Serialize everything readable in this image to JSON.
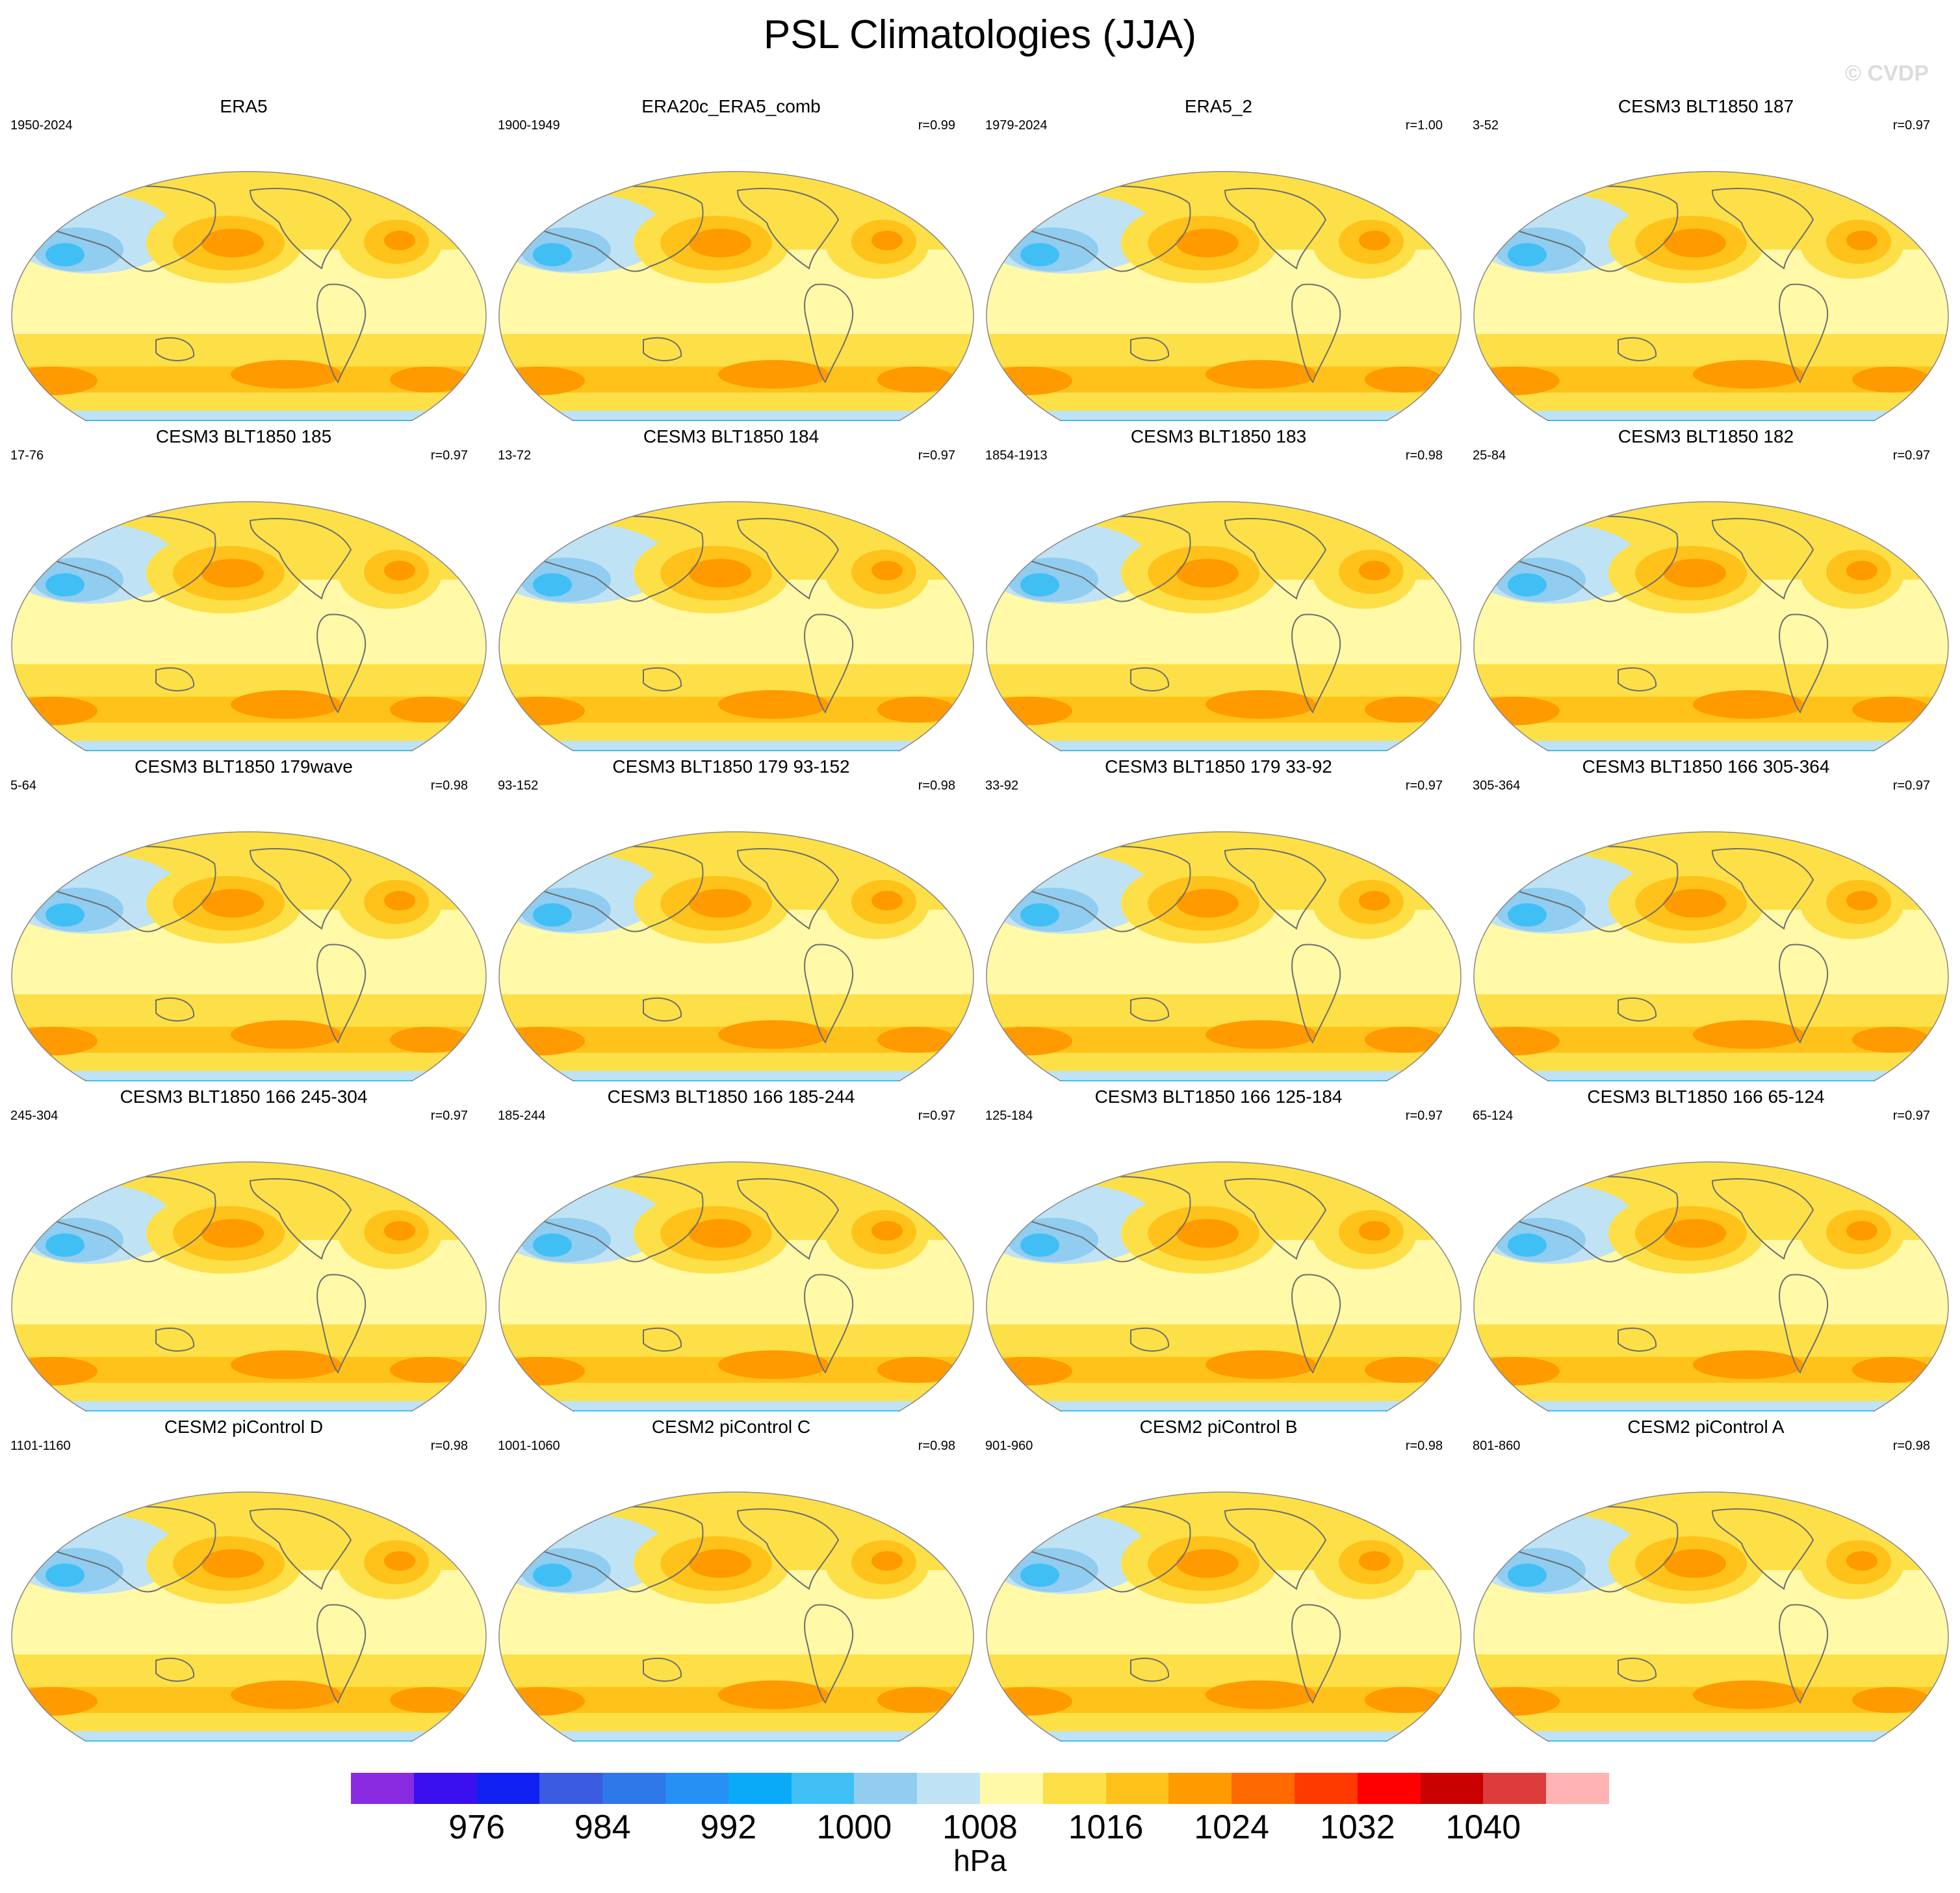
{
  "title": "PSL Climatologies (JJA)",
  "watermark": "© CVDP",
  "unit": "hPa",
  "colorbar": {
    "colors": [
      "#8a2be2",
      "#3a10f0",
      "#1020f0",
      "#3a5ae0",
      "#2f78ea",
      "#2690f5",
      "#0aaaf8",
      "#40bff5",
      "#90cdf0",
      "#bfe3f5",
      "#fff9a8",
      "#fde047",
      "#ffc21a",
      "#ff9a00",
      "#ff6a00",
      "#ff3a00",
      "#ff0000",
      "#c80000",
      "#dc3c3c",
      "#ffb3b3"
    ],
    "tick_labels": [
      "976",
      "984",
      "992",
      "1000",
      "1008",
      "1016",
      "1024",
      "1032",
      "1040"
    ]
  },
  "panels": [
    {
      "title": "ERA5",
      "years": "1950-2024",
      "corr": ""
    },
    {
      "title": "ERA20c_ERA5_comb",
      "years": "1900-1949",
      "corr": "r=0.99"
    },
    {
      "title": "ERA5_2",
      "years": "1979-2024",
      "corr": "r=1.00"
    },
    {
      "title": "CESM3 BLT1850 187",
      "years": "3-52",
      "corr": "r=0.97"
    },
    {
      "title": "CESM3 BLT1850 185",
      "years": "17-76",
      "corr": "r=0.97"
    },
    {
      "title": "CESM3 BLT1850 184",
      "years": "13-72",
      "corr": "r=0.97"
    },
    {
      "title": "CESM3 BLT1850 183",
      "years": "1854-1913",
      "corr": "r=0.98"
    },
    {
      "title": "CESM3 BLT1850 182",
      "years": "25-84",
      "corr": "r=0.97"
    },
    {
      "title": "CESM3 BLT1850 179wave",
      "years": "5-64",
      "corr": "r=0.98"
    },
    {
      "title": "CESM3 BLT1850 179 93-152",
      "years": "93-152",
      "corr": "r=0.98"
    },
    {
      "title": "CESM3 BLT1850 179 33-92",
      "years": "33-92",
      "corr": "r=0.97"
    },
    {
      "title": "CESM3 BLT1850 166 305-364",
      "years": "305-364",
      "corr": "r=0.97"
    },
    {
      "title": "CESM3 BLT1850 166 245-304",
      "years": "245-304",
      "corr": "r=0.97"
    },
    {
      "title": "CESM3 BLT1850 166 185-244",
      "years": "185-244",
      "corr": "r=0.97"
    },
    {
      "title": "CESM3 BLT1850 166 125-184",
      "years": "125-184",
      "corr": "r=0.97"
    },
    {
      "title": "CESM3 BLT1850 166 65-124",
      "years": "65-124",
      "corr": "r=0.97"
    },
    {
      "title": "CESM2 piControl D",
      "years": "1101-1160",
      "corr": "r=0.98"
    },
    {
      "title": "CESM2 piControl C",
      "years": "1001-1060",
      "corr": "r=0.98"
    },
    {
      "title": "CESM2 piControl B",
      "years": "901-960",
      "corr": "r=0.98"
    },
    {
      "title": "CESM2 piControl A",
      "years": "801-860",
      "corr": "r=0.98"
    }
  ]
}
